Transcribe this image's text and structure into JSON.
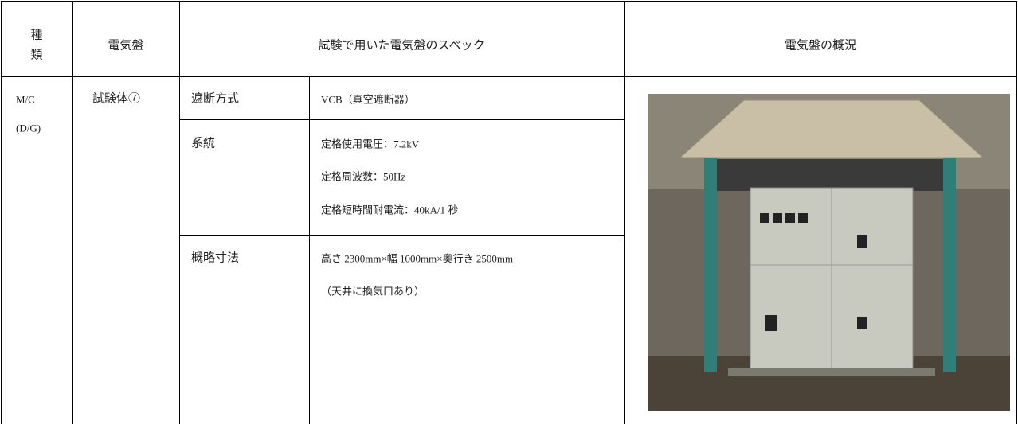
{
  "table": {
    "header": [
      "種",
      "類",
      "電気盤",
      "試験で用いた電気盤のスペック",
      "電気盤の概況"
    ],
    "rows": [
      {
        "type": [
          "M/C",
          "(D/G)"
        ],
        "panel": "試験体⑦",
        "specs": [
          {
            "item": "遮断方式",
            "lines": [
              "VCB（真空遮断器）"
            ]
          },
          {
            "item": "系統",
            "lines": [
              "定格使用電圧：7.2kV",
              "定格周波数：50Hz",
              "定格短時間耐電流：40kA/1 秒"
            ]
          },
          {
            "item": "概略寸法",
            "lines": [
              "高さ 2300mm×幅 1000mm×奥行き 2500mm",
              "（天井に換気口あり）"
            ]
          }
        ]
      }
    ]
  }
}
